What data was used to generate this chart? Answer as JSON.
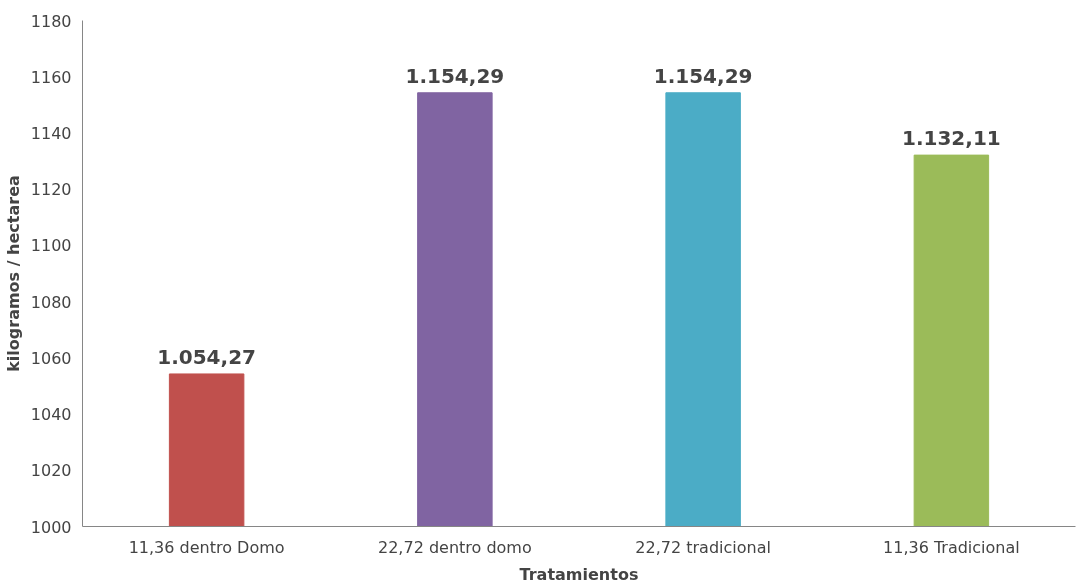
{
  "chart_data": {
    "type": "bar",
    "xlabel": "Tratamientos",
    "ylabel": "kilogramos / hectarea",
    "categories": [
      "11,36 dentro Domo",
      "22,72 dentro domo",
      "22,72 tradicional",
      "11,36 Tradicional"
    ],
    "values": [
      1054.27,
      1154.29,
      1154.29,
      1132.11
    ],
    "colors": [
      "#c0504d",
      "#8064a2",
      "#4bacc6",
      "#9bbb59"
    ],
    "value_labels": [
      "1.054,27",
      "1.154,29",
      "1.154,29",
      "1.132,11"
    ],
    "ylim": [
      1000,
      1180
    ],
    "yticks": [
      1000,
      1020,
      1040,
      1060,
      1080,
      1100,
      1120,
      1140,
      1160,
      1180
    ],
    "grid": false
  }
}
